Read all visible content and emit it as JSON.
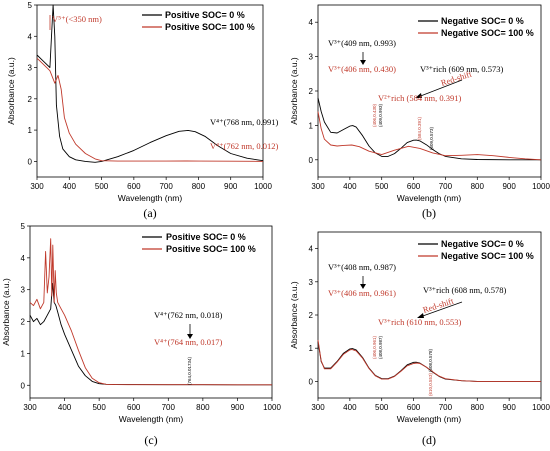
{
  "colors": {
    "black": "#000000",
    "red": "#c0392b"
  },
  "chart_data": [
    {
      "type": "line",
      "panel_label": "(a)",
      "xlabel": "Wavelength (nm)",
      "ylabel": "Absorbance (a.u.)",
      "xlim": [
        300,
        1000
      ],
      "ylim": [
        -0.5,
        5
      ],
      "xticks": [
        300,
        400,
        500,
        600,
        700,
        800,
        900,
        1000
      ],
      "yticks": [
        0,
        1,
        2,
        3,
        4,
        5
      ],
      "legend_position": "top-right",
      "series": [
        {
          "name": "Positive SOC= 0 %",
          "color": "#000000",
          "x": [
            300,
            320,
            340,
            350,
            355,
            360,
            370,
            380,
            400,
            420,
            450,
            480,
            500,
            550,
            600,
            650,
            700,
            740,
            768,
            790,
            820,
            860,
            900,
            950,
            1000
          ],
          "y": [
            3.4,
            3.2,
            3.0,
            5.0,
            4.0,
            1.8,
            0.8,
            0.4,
            0.15,
            0.05,
            0.0,
            -0.03,
            0.0,
            0.15,
            0.35,
            0.6,
            0.82,
            0.96,
            0.991,
            0.95,
            0.8,
            0.5,
            0.25,
            0.1,
            0.02
          ]
        },
        {
          "name": "Positive SOC= 100 %",
          "color": "#c0392b",
          "x": [
            300,
            320,
            340,
            355,
            365,
            375,
            385,
            400,
            420,
            450,
            480,
            500,
            550,
            600,
            700,
            762,
            800,
            900,
            1000
          ],
          "y": [
            3.3,
            3.1,
            2.9,
            2.5,
            2.75,
            2.3,
            1.4,
            0.9,
            0.55,
            0.25,
            0.08,
            0.02,
            0.01,
            0.01,
            0.01,
            0.012,
            0.01,
            0.005,
            0.0
          ]
        }
      ],
      "annotations": [
        {
          "text": "V⁵⁺(<350 nm)",
          "color": "#c0392b"
        },
        {
          "text": "V⁴⁺(768 nm, 0.991)",
          "color": "#000000"
        },
        {
          "text": "V⁴⁺(762 nm, 0.012)",
          "color": "#c0392b"
        }
      ]
    },
    {
      "type": "line",
      "panel_label": "(b)",
      "xlabel": "Wavelength (nm)",
      "ylabel": "Absorbance (a.u.)",
      "xlim": [
        300,
        1000
      ],
      "ylim": [
        -0.5,
        4.5
      ],
      "xticks": [
        300,
        400,
        500,
        600,
        700,
        800,
        900,
        1000
      ],
      "yticks": [
        0,
        1,
        2,
        3,
        4
      ],
      "legend_position": "top-right",
      "series": [
        {
          "name": "Negative SOC= 0 %",
          "color": "#000000",
          "x": [
            300,
            310,
            320,
            340,
            360,
            380,
            400,
            409,
            420,
            440,
            460,
            480,
            500,
            520,
            540,
            560,
            580,
            600,
            609,
            620,
            640,
            660,
            680,
            700,
            750,
            800,
            900,
            1000
          ],
          "y": [
            1.8,
            1.4,
            1.1,
            0.8,
            0.78,
            0.88,
            0.98,
            0.993,
            0.95,
            0.7,
            0.4,
            0.2,
            0.1,
            0.1,
            0.18,
            0.33,
            0.5,
            0.57,
            0.573,
            0.55,
            0.44,
            0.3,
            0.18,
            0.1,
            0.03,
            0.01,
            0.0,
            0.0
          ]
        },
        {
          "name": "Negative SOC= 100 %",
          "color": "#c0392b",
          "x": [
            300,
            310,
            320,
            340,
            360,
            380,
            406,
            430,
            460,
            500,
            540,
            584,
            620,
            660,
            700,
            750,
            800,
            850,
            900,
            950,
            1000
          ],
          "y": [
            1.4,
            0.9,
            0.6,
            0.43,
            0.4,
            0.42,
            0.43,
            0.38,
            0.25,
            0.15,
            0.28,
            0.391,
            0.33,
            0.2,
            0.12,
            0.13,
            0.15,
            0.12,
            0.07,
            0.03,
            0.0
          ]
        }
      ],
      "annotations": [
        {
          "text": "V³⁺(409 nm, 0.993)",
          "color": "#000000"
        },
        {
          "text": "V³⁺(406 nm, 0.430)",
          "color": "#c0392b"
        },
        {
          "text": "V³⁺rich (609 nm, 0.573)",
          "color": "#000000"
        },
        {
          "text": "Red-shift",
          "color": "#c0392b"
        },
        {
          "text": "V²⁺rich (584 nm, 0.391)",
          "color": "#c0392b"
        },
        {
          "text": "(406,0.430)",
          "color": "#c0392b"
        },
        {
          "text": "(409,0.993)",
          "color": "#000000"
        },
        {
          "text": "(584,0.391)",
          "color": "#c0392b"
        },
        {
          "text": "(609,0.573)",
          "color": "#000000"
        }
      ]
    },
    {
      "type": "line",
      "panel_label": "(c)",
      "xlabel": "Wavelength (nm)",
      "ylabel": "Absorbance (a.u.)",
      "xlim": [
        300,
        1000
      ],
      "ylim": [
        -0.4,
        5
      ],
      "xticks": [
        300,
        400,
        500,
        600,
        700,
        800,
        900,
        1000
      ],
      "yticks": [
        0,
        1,
        2,
        3,
        4,
        5
      ],
      "legend_position": "top-right",
      "series": [
        {
          "name": "Positive SOC= 0 %",
          "color": "#000000",
          "x": [
            300,
            310,
            320,
            330,
            340,
            350,
            360,
            365,
            370,
            375,
            380,
            390,
            400,
            420,
            440,
            460,
            480,
            500,
            520,
            550,
            600,
            700,
            762,
            800,
            900,
            1000
          ],
          "y": [
            2.2,
            2.0,
            2.1,
            1.9,
            2.0,
            2.2,
            2.4,
            3.2,
            2.6,
            2.5,
            2.3,
            1.9,
            1.6,
            1.1,
            0.6,
            0.3,
            0.12,
            0.05,
            0.03,
            0.02,
            0.02,
            0.018,
            0.018,
            0.018,
            0.015,
            0.015
          ]
        },
        {
          "name": "Positive SOC= 100 %",
          "color": "#c0392b",
          "x": [
            300,
            310,
            320,
            330,
            340,
            345,
            350,
            355,
            360,
            363,
            366,
            370,
            373,
            376,
            380,
            390,
            400,
            420,
            440,
            460,
            480,
            500,
            520,
            550,
            600,
            700,
            764,
            800,
            900,
            1000
          ],
          "y": [
            2.6,
            2.5,
            2.7,
            2.4,
            2.6,
            4.2,
            2.9,
            3.4,
            4.6,
            2.8,
            4.4,
            2.6,
            3.6,
            2.9,
            2.6,
            2.4,
            2.2,
            1.7,
            1.1,
            0.55,
            0.22,
            0.08,
            0.03,
            0.02,
            0.018,
            0.017,
            0.017,
            0.017,
            0.015,
            0.015
          ]
        }
      ],
      "annotations": [
        {
          "text": "V⁴⁺(762 nm, 0.018)",
          "color": "#000000"
        },
        {
          "text": "V⁴⁺(764 nm, 0.017)",
          "color": "#c0392b"
        },
        {
          "text": "(764,0.01734)",
          "color": "#000000"
        }
      ]
    },
    {
      "type": "line",
      "panel_label": "(d)",
      "xlabel": "Wavelength (nm)",
      "ylabel": "Absorbance (a.u.)",
      "xlim": [
        300,
        1000
      ],
      "ylim": [
        -0.5,
        4.5
      ],
      "xticks": [
        300,
        400,
        500,
        600,
        700,
        800,
        900,
        1000
      ],
      "yticks": [
        0,
        1,
        2,
        3,
        4
      ],
      "legend_position": "top-right",
      "series": [
        {
          "name": "Negative  SOC= 0 %",
          "color": "#000000",
          "x": [
            300,
            310,
            320,
            340,
            360,
            380,
            400,
            408,
            420,
            440,
            460,
            480,
            500,
            520,
            540,
            560,
            580,
            600,
            608,
            620,
            640,
            660,
            680,
            700,
            750,
            800,
            900,
            1000
          ],
          "y": [
            1.2,
            0.6,
            0.4,
            0.4,
            0.6,
            0.85,
            0.98,
            0.987,
            0.95,
            0.72,
            0.4,
            0.18,
            0.08,
            0.08,
            0.16,
            0.32,
            0.5,
            0.575,
            0.578,
            0.55,
            0.43,
            0.28,
            0.15,
            0.07,
            0.02,
            0.0,
            0.0,
            0.0
          ]
        },
        {
          "name": "Negative SOC= 100 %",
          "color": "#c0392b",
          "x": [
            300,
            310,
            320,
            340,
            360,
            380,
            400,
            406,
            420,
            440,
            460,
            480,
            500,
            520,
            540,
            560,
            580,
            600,
            610,
            620,
            640,
            660,
            680,
            700,
            750,
            800,
            900,
            1000
          ],
          "y": [
            1.25,
            0.62,
            0.38,
            0.38,
            0.58,
            0.82,
            0.95,
            0.961,
            0.92,
            0.7,
            0.39,
            0.17,
            0.07,
            0.07,
            0.15,
            0.3,
            0.47,
            0.54,
            0.553,
            0.54,
            0.43,
            0.29,
            0.16,
            0.08,
            0.02,
            0.0,
            0.0,
            0.0
          ]
        }
      ],
      "annotations": [
        {
          "text": "V³⁺(408 nm, 0.987)",
          "color": "#000000"
        },
        {
          "text": "V³⁺(406 nm, 0.961)",
          "color": "#c0392b"
        },
        {
          "text": "V³⁺rich (608 nm, 0.578)",
          "color": "#000000"
        },
        {
          "text": "Red-shift",
          "color": "#c0392b"
        },
        {
          "text": "V³⁺rich (610 nm, 0.553)",
          "color": "#c0392b"
        },
        {
          "text": "(406,0.961)",
          "color": "#c0392b"
        },
        {
          "text": "(408,0.987)",
          "color": "#000000"
        },
        {
          "text": "(610,0.553)",
          "color": "#c0392b"
        },
        {
          "text": "(608,0.578)",
          "color": "#000000"
        }
      ]
    }
  ]
}
